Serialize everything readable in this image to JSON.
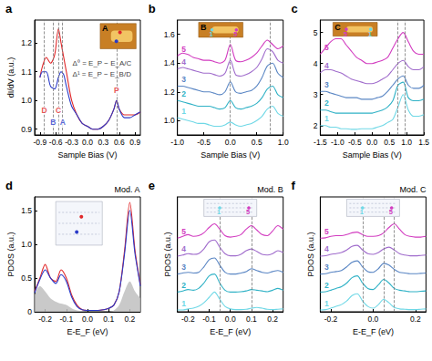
{
  "chart_data": [
    {
      "panel": "a",
      "type": "line",
      "xlabel": "Sample Bias (V)",
      "ylabel": "dI/dV (a.u.)",
      "xlim": [
        -1.0,
        1.0
      ],
      "xticks": [
        -0.9,
        -0.6,
        -0.3,
        {
          "value": 0,
          "label": "0.0"
        },
        0.3,
        0.6,
        0.9
      ],
      "ylim": [
        0.88,
        1.28
      ],
      "yticks": [
        0.9,
        {
          "value": 1,
          "label": "1.0"
        },
        1.1,
        1.2
      ],
      "x": [
        -0.9,
        -0.85,
        -0.78,
        -0.7,
        -0.62,
        -0.55,
        -0.5,
        -0.45,
        -0.4,
        -0.3,
        -0.2,
        -0.1,
        0,
        0.1,
        0.2,
        0.3,
        0.4,
        0.5,
        0.55,
        0.6,
        0.7,
        0.8,
        0.9,
        1.0
      ],
      "series": [
        {
          "color": "#e0282a",
          "values": [
            1.08,
            1.12,
            1.15,
            1.13,
            1.16,
            1.25,
            1.2,
            1.15,
            1.1,
            1.0,
            0.95,
            0.92,
            0.91,
            0.9,
            0.9,
            0.91,
            0.93,
            0.97,
            1.0,
            0.97,
            0.95,
            0.95,
            0.95,
            0.96
          ]
        },
        {
          "color": "#2a3ac8",
          "values": [
            1.08,
            1.1,
            1.1,
            1.05,
            1.04,
            1.08,
            1.1,
            1.09,
            1.05,
            0.98,
            0.95,
            0.92,
            0.91,
            0.9,
            0.9,
            0.91,
            0.93,
            0.97,
            1.0,
            0.97,
            0.94,
            0.94,
            0.95,
            0.96
          ]
        }
      ],
      "vlines": [
        -0.82,
        -0.65,
        -0.55,
        -0.47,
        0.55
      ],
      "annotations": [
        {
          "text": "D",
          "x": -0.82,
          "y": 0.965,
          "color": "#e0282a"
        },
        {
          "text": "C",
          "x": -0.55,
          "y": 0.965,
          "color": "#e0282a"
        },
        {
          "text": "B",
          "x": -0.65,
          "y": 0.925,
          "color": "#2a3ac8"
        },
        {
          "text": "A",
          "x": -0.47,
          "y": 0.925,
          "color": "#2a3ac8"
        },
        {
          "text": "P",
          "x": 0.55,
          "y": 1.035,
          "color": "#e0282a"
        },
        {
          "text": "Δ⁰ = E_P − E_A/C",
          "x": -0.3,
          "y": 1.13,
          "color": "#000000"
        },
        {
          "text": "Δ¹ = E_P − E_B/D",
          "x": -0.3,
          "y": 1.09,
          "color": "#000000"
        }
      ],
      "inset": {
        "label": "A",
        "kind": "stm"
      }
    },
    {
      "panel": "b",
      "type": "line",
      "xlabel": "Sample Bias (V)",
      "xlim": [
        -1.0,
        1.0
      ],
      "xticks": [
        {
          "value": -1,
          "label": "-1.0"
        },
        -0.5,
        {
          "value": 0,
          "label": "0.0"
        },
        0.5,
        {
          "value": 1,
          "label": "1.0"
        }
      ],
      "ylim": [
        0.9,
        1.7
      ],
      "yticks": [
        {
          "value": 1,
          "label": "1.0"
        },
        1.2,
        1.4,
        1.6
      ],
      "x": [
        -1.0,
        -0.9,
        -0.8,
        -0.7,
        -0.6,
        -0.5,
        -0.4,
        -0.3,
        -0.2,
        -0.1,
        0.0,
        0.1,
        0.2,
        0.3,
        0.4,
        0.5,
        0.6,
        0.7,
        0.8,
        0.9,
        1.0
      ],
      "series": [
        {
          "name": "1",
          "color": "#6fd8e6",
          "values": [
            1.02,
            1.01,
            1.0,
            0.99,
            0.98,
            0.98,
            0.97,
            0.96,
            0.96,
            0.97,
            0.99,
            0.97,
            0.96,
            0.97,
            0.98,
            1.0,
            1.03,
            1.08,
            1.1,
            1.05,
            1.03
          ]
        },
        {
          "name": "2",
          "color": "#30b2c6",
          "values": [
            1.14,
            1.13,
            1.12,
            1.11,
            1.1,
            1.1,
            1.1,
            1.09,
            1.08,
            1.09,
            1.14,
            1.09,
            1.08,
            1.09,
            1.1,
            1.12,
            1.16,
            1.22,
            1.24,
            1.18,
            1.16
          ]
        },
        {
          "name": "3",
          "color": "#5a86c4",
          "values": [
            1.24,
            1.24,
            1.23,
            1.22,
            1.21,
            1.2,
            1.2,
            1.19,
            1.18,
            1.2,
            1.27,
            1.2,
            1.19,
            1.2,
            1.21,
            1.24,
            1.3,
            1.38,
            1.4,
            1.33,
            1.3
          ]
        },
        {
          "name": "4",
          "color": "#a06ccc",
          "values": [
            1.36,
            1.37,
            1.36,
            1.35,
            1.34,
            1.33,
            1.33,
            1.32,
            1.31,
            1.33,
            1.42,
            1.32,
            1.31,
            1.32,
            1.34,
            1.37,
            1.43,
            1.5,
            1.48,
            1.42,
            1.4
          ]
        },
        {
          "name": "5",
          "color": "#d23cc0",
          "values": [
            1.45,
            1.47,
            1.46,
            1.44,
            1.43,
            1.42,
            1.42,
            1.41,
            1.4,
            1.42,
            1.53,
            1.42,
            1.41,
            1.42,
            1.44,
            1.47,
            1.52,
            1.56,
            1.53,
            1.5,
            1.52
          ]
        }
      ],
      "vlines": [
        0.0,
        0.75
      ],
      "inset": {
        "label": "B",
        "kind": "stm",
        "markers": [
          "1",
          "5"
        ]
      }
    },
    {
      "panel": "c",
      "type": "line",
      "xlabel": "Sample Bias (V)",
      "xlim": [
        -1.5,
        1.5
      ],
      "xticks": [
        -1.5,
        {
          "value": -1,
          "label": "-1.0"
        },
        -0.5,
        {
          "value": 0,
          "label": "0.0"
        },
        0.5,
        {
          "value": 1,
          "label": "1.0"
        },
        1.5
      ],
      "ylim": [
        1.7,
        5.4
      ],
      "yticks": [
        2,
        3,
        4,
        5
      ],
      "x": [
        -1.5,
        -1.35,
        -1.2,
        -1.05,
        -0.9,
        -0.75,
        -0.6,
        -0.45,
        -0.3,
        -0.15,
        0,
        0.15,
        0.3,
        0.45,
        0.6,
        0.75,
        0.9,
        1.05,
        1.2,
        1.35,
        1.5
      ],
      "series": [
        {
          "name": "1",
          "color": "#6fd8e6",
          "values": [
            2.0,
            2.0,
            1.95,
            1.95,
            1.9,
            1.9,
            1.88,
            1.88,
            1.9,
            1.9,
            1.9,
            1.95,
            2.0,
            2.1,
            2.2,
            2.6,
            3.0,
            2.5,
            2.3,
            2.3,
            2.35
          ]
        },
        {
          "name": "2",
          "color": "#30b2c6",
          "values": [
            2.5,
            2.5,
            2.45,
            2.4,
            2.4,
            2.4,
            2.4,
            2.4,
            2.4,
            2.4,
            2.4,
            2.45,
            2.5,
            2.6,
            2.8,
            3.3,
            3.4,
            2.9,
            2.8,
            2.8,
            2.85
          ]
        },
        {
          "name": "3",
          "color": "#5a86c4",
          "values": [
            3.1,
            3.1,
            3.05,
            3.0,
            2.95,
            2.9,
            2.9,
            2.9,
            2.85,
            2.85,
            2.85,
            2.9,
            2.95,
            3.1,
            3.3,
            3.5,
            3.6,
            3.3,
            3.2,
            3.2,
            3.3
          ]
        },
        {
          "name": "4",
          "color": "#a06ccc",
          "values": [
            3.7,
            3.8,
            3.8,
            3.75,
            3.7,
            3.6,
            3.5,
            3.45,
            3.4,
            3.35,
            3.35,
            3.4,
            3.5,
            3.6,
            3.8,
            4.0,
            4.1,
            3.9,
            3.8,
            3.8,
            3.9
          ]
        },
        {
          "name": "5",
          "color": "#d23cc0",
          "values": [
            4.3,
            4.5,
            4.7,
            4.8,
            4.8,
            4.6,
            4.4,
            4.2,
            4.1,
            4.0,
            4.0,
            4.05,
            4.1,
            4.2,
            4.5,
            4.8,
            5.0,
            4.7,
            4.4,
            4.3,
            4.3
          ]
        }
      ],
      "vlines": [
        0.75,
        0.95
      ],
      "inset": {
        "label": "C",
        "kind": "stm",
        "markers": [
          "5",
          "1"
        ]
      }
    },
    {
      "panel": "d",
      "type": "line",
      "title": "Mod. A",
      "xlabel": "E-E_F (eV)",
      "ylabel": "PDOS (a.u.)",
      "xlim": [
        -0.25,
        0.25
      ],
      "xticks": [
        -0.2,
        -0.1,
        {
          "value": 0,
          "label": "0.0"
        },
        0.1,
        0.2
      ],
      "ylim": [
        0,
        1.7
      ],
      "yticks": [
        0,
        0.5,
        {
          "value": 1,
          "label": "1.0"
        },
        1.5
      ],
      "x": [
        -0.25,
        -0.225,
        -0.2,
        -0.175,
        -0.15,
        -0.125,
        -0.1,
        -0.075,
        -0.05,
        -0.025,
        0,
        0.025,
        0.05,
        0.075,
        0.1,
        0.125,
        0.15,
        0.175,
        0.2,
        0.225,
        0.25
      ],
      "series": [
        {
          "type": "area",
          "color": "#bfbfbf",
          "values": [
            0.25,
            0.38,
            0.3,
            0.2,
            0.15,
            0.12,
            0.1,
            0.05,
            0.02,
            0.01,
            0,
            0,
            0,
            0,
            0,
            0.02,
            0.1,
            0.3,
            0.45,
            0.3,
            0.2
          ]
        },
        {
          "color": "#e0282a",
          "values": [
            0.3,
            0.5,
            0.7,
            0.5,
            0.45,
            0.62,
            0.5,
            0.25,
            0.1,
            0.03,
            0.02,
            0.02,
            0.02,
            0.03,
            0.05,
            0.1,
            0.3,
            0.9,
            1.62,
            0.9,
            0.4
          ]
        },
        {
          "color": "#2a3ac8",
          "values": [
            0.28,
            0.48,
            0.62,
            0.5,
            0.42,
            0.55,
            0.45,
            0.22,
            0.08,
            0.03,
            0.02,
            0.02,
            0.02,
            0.03,
            0.05,
            0.1,
            0.3,
            0.85,
            1.5,
            0.85,
            0.38
          ]
        }
      ],
      "inset": {
        "kind": "model"
      }
    },
    {
      "panel": "e",
      "type": "line",
      "title": "Mod. B",
      "xlabel": "E-E_F (eV)",
      "ylabel": "PDOS (a.u.)",
      "tick_labels": "x",
      "xlim": [
        -0.25,
        0.25
      ],
      "xticks": [
        -0.2,
        -0.1,
        {
          "value": 0,
          "label": "0.0"
        },
        0.1,
        0.2
      ],
      "ylim": [
        0,
        3.2
      ],
      "x": [
        -0.25,
        -0.225,
        -0.2,
        -0.175,
        -0.15,
        -0.125,
        -0.1,
        -0.075,
        -0.05,
        -0.025,
        0,
        0.025,
        0.05,
        0.075,
        0.1,
        0.125,
        0.15,
        0.175,
        0.2,
        0.225,
        0.25
      ],
      "series": [
        {
          "name": "1",
          "color": "#6fd8e6",
          "values": [
            0.05,
            0.05,
            0.08,
            0.1,
            0.15,
            0.25,
            0.4,
            0.55,
            0.35,
            0.15,
            0.08,
            0.06,
            0.06,
            0.07,
            0.1,
            0.12,
            0.1,
            0.07,
            0.06,
            0.07,
            0.08
          ]
        },
        {
          "name": "2",
          "color": "#30b2c6",
          "values": [
            0.55,
            0.58,
            0.62,
            0.6,
            0.65,
            0.8,
            1.0,
            1.05,
            0.8,
            0.6,
            0.55,
            0.55,
            0.56,
            0.58,
            0.62,
            0.6,
            0.58,
            0.56,
            0.6,
            0.65,
            0.6
          ]
        },
        {
          "name": "3",
          "color": "#5a86c4",
          "values": [
            1.05,
            1.08,
            1.1,
            1.08,
            1.1,
            1.25,
            1.45,
            1.5,
            1.3,
            1.1,
            1.05,
            1.05,
            1.08,
            1.12,
            1.2,
            1.15,
            1.1,
            1.08,
            1.12,
            1.15,
            1.1
          ]
        },
        {
          "name": "4",
          "color": "#a06ccc",
          "values": [
            1.55,
            1.58,
            1.62,
            1.6,
            1.62,
            1.75,
            1.95,
            2.0,
            1.8,
            1.62,
            1.56,
            1.56,
            1.6,
            1.7,
            1.75,
            1.68,
            1.6,
            1.58,
            1.62,
            1.7,
            1.65
          ]
        },
        {
          "name": "5",
          "color": "#d23cc0",
          "values": [
            2.05,
            2.1,
            2.15,
            2.1,
            2.12,
            2.2,
            2.35,
            2.45,
            2.3,
            2.12,
            2.08,
            2.1,
            2.15,
            2.3,
            2.4,
            2.28,
            2.15,
            2.12,
            2.25,
            2.4,
            2.3
          ]
        }
      ],
      "vlines": [
        -0.05,
        0.1
      ],
      "inset": {
        "kind": "model",
        "markers": [
          "1",
          "5"
        ]
      }
    },
    {
      "panel": "f",
      "type": "line",
      "title": "Mod. C",
      "xlabel": "E-E_F (eV)",
      "ylabel": "PDOS (a.u.)",
      "tick_labels": "x",
      "xlim": [
        -0.25,
        0.25
      ],
      "xticks": [
        -0.2,
        {
          "value": 0,
          "label": "0.0"
        },
        0.2
      ],
      "ylim": [
        0,
        3.2
      ],
      "x": [
        -0.25,
        -0.225,
        -0.2,
        -0.175,
        -0.15,
        -0.125,
        -0.1,
        -0.075,
        -0.05,
        -0.025,
        0,
        0.025,
        0.05,
        0.075,
        0.1,
        0.125,
        0.15,
        0.175,
        0.2,
        0.225,
        0.25
      ],
      "series": [
        {
          "name": "1",
          "color": "#6fd8e6",
          "values": [
            0.05,
            0.06,
            0.1,
            0.15,
            0.2,
            0.3,
            0.45,
            0.5,
            0.3,
            0.15,
            0.1,
            0.2,
            0.35,
            0.25,
            0.12,
            0.08,
            0.07,
            0.06,
            0.06,
            0.07,
            0.08
          ]
        },
        {
          "name": "2",
          "color": "#30b2c6",
          "values": [
            0.55,
            0.56,
            0.6,
            0.65,
            0.7,
            0.8,
            0.95,
            1.0,
            0.8,
            0.65,
            0.62,
            0.75,
            0.9,
            0.8,
            0.65,
            0.6,
            0.58,
            0.56,
            0.56,
            0.57,
            0.58
          ]
        },
        {
          "name": "3",
          "color": "#5a86c4",
          "values": [
            1.05,
            1.06,
            1.1,
            1.12,
            1.15,
            1.25,
            1.38,
            1.42,
            1.25,
            1.12,
            1.1,
            1.2,
            1.35,
            1.3,
            1.18,
            1.1,
            1.08,
            1.06,
            1.06,
            1.07,
            1.08
          ]
        },
        {
          "name": "4",
          "color": "#a06ccc",
          "values": [
            1.55,
            1.56,
            1.6,
            1.62,
            1.65,
            1.72,
            1.82,
            1.85,
            1.72,
            1.62,
            1.6,
            1.65,
            1.75,
            1.8,
            1.72,
            1.62,
            1.58,
            1.56,
            1.56,
            1.57,
            1.58
          ]
        },
        {
          "name": "5",
          "color": "#d23cc0",
          "values": [
            2.05,
            2.06,
            2.1,
            2.12,
            2.12,
            2.15,
            2.2,
            2.22,
            2.15,
            2.1,
            2.1,
            2.12,
            2.2,
            2.35,
            2.45,
            2.3,
            2.15,
            2.1,
            2.08,
            2.08,
            2.1
          ]
        }
      ],
      "vlines": [
        -0.05,
        0.05,
        0.1
      ],
      "inset": {
        "kind": "model",
        "markers": [
          "1",
          "5"
        ]
      }
    }
  ]
}
